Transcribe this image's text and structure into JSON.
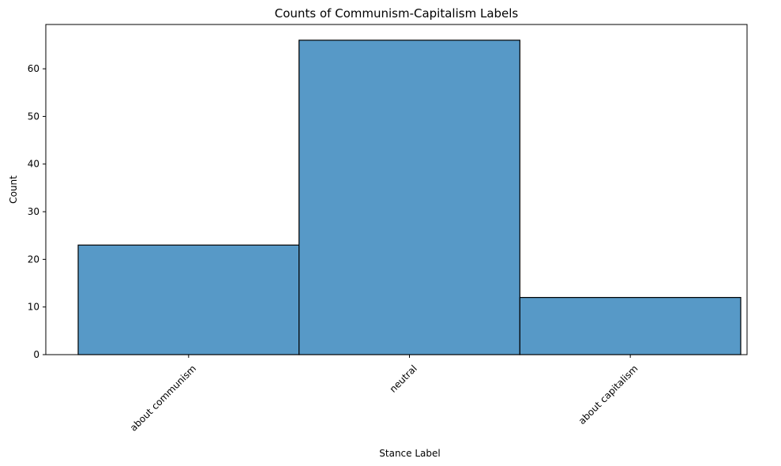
{
  "chart_data": {
    "type": "bar",
    "title": "Counts of Communism-Capitalism Labels",
    "xlabel": "Stance Label",
    "ylabel": "Count",
    "categories": [
      "about communism",
      "neutral",
      "about capitalism"
    ],
    "values": [
      23,
      66,
      12
    ],
    "ylim": [
      0,
      69.3
    ],
    "yticks": [
      0,
      10,
      20,
      30,
      40,
      50,
      60
    ],
    "bar_color": "#5799c7",
    "edge_color": "#000000",
    "grid": false,
    "tick_rotation_deg": 45
  }
}
